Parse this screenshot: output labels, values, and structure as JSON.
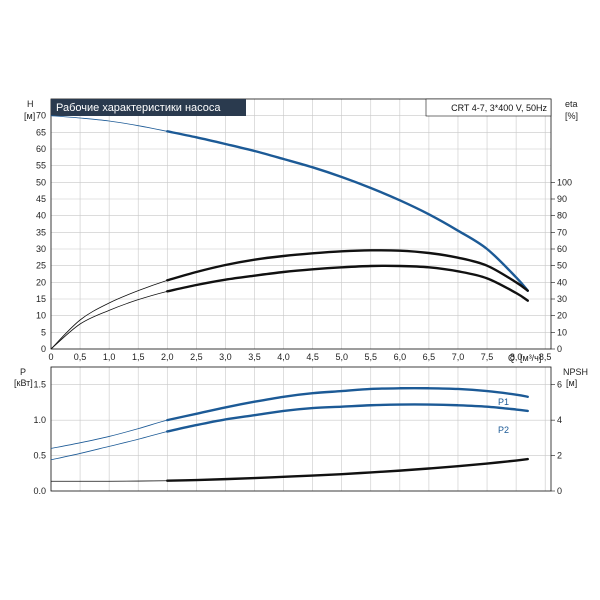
{
  "chart_data": [
    {
      "type": "line",
      "title": "Рабочие характеристики насоса",
      "subtitle": "CRT 4-7, 3*400 V, 50Hz",
      "ylabel": "H",
      "yunit": "[м]",
      "y2label": "eta",
      "y2unit": "[%]",
      "xlabel": "Q",
      "xunit": "[м³/ч]",
      "xlim": [
        0,
        8.6
      ],
      "ylim": [
        0,
        75
      ],
      "y2lim": [
        0,
        150
      ],
      "grid": true,
      "x_ticks": [
        "0",
        "0,5",
        "1,0",
        "1,5",
        "2,0",
        "2,5",
        "3,0",
        "3,5",
        "4,0",
        "4,5",
        "5,0",
        "5,5",
        "6,0",
        "6,5",
        "7,0",
        "7,5",
        "8,0",
        "8,5"
      ],
      "y_ticks": [
        "0",
        "5",
        "10",
        "15",
        "20",
        "25",
        "30",
        "35",
        "40",
        "45",
        "50",
        "55",
        "60",
        "65",
        "70"
      ],
      "y2_ticks": [
        "0",
        "10",
        "20",
        "30",
        "40",
        "50",
        "60",
        "70",
        "80",
        "90",
        "100"
      ],
      "series": [
        {
          "axis": "left",
          "color": "#1c5a96",
          "x": [
            0,
            0.5,
            1.0,
            1.5,
            2.0,
            2.5,
            3.0,
            3.5,
            4.0,
            4.5,
            5.0,
            5.5,
            6.0,
            6.5,
            7.0,
            7.5,
            8.0,
            8.2
          ],
          "values": [
            70.0,
            69.3,
            68.4,
            67.0,
            65.3,
            63.5,
            61.5,
            59.4,
            57.0,
            54.5,
            51.6,
            48.3,
            44.6,
            40.4,
            35.5,
            30.0,
            21.5,
            17.5
          ]
        },
        {
          "axis": "left",
          "color": "#111111",
          "x": [
            0,
            0.5,
            1.0,
            1.5,
            2.0,
            2.5,
            3.0,
            3.5,
            4.0,
            4.5,
            5.0,
            5.5,
            6.0,
            6.5,
            7.0,
            7.5,
            8.0,
            8.2
          ],
          "values": [
            0,
            8.7,
            13.8,
            17.5,
            20.6,
            23.1,
            25.2,
            26.8,
            27.9,
            28.7,
            29.3,
            29.6,
            29.5,
            28.8,
            27.4,
            25.0,
            20.0,
            17.5
          ]
        },
        {
          "axis": "left",
          "color": "#111111",
          "x": [
            0,
            0.5,
            1.0,
            1.5,
            2.0,
            2.5,
            3.0,
            3.5,
            4.0,
            4.5,
            5.0,
            5.5,
            6.0,
            6.5,
            7.0,
            7.5,
            8.0,
            8.2
          ],
          "values": [
            0,
            7.5,
            11.6,
            14.8,
            17.3,
            19.2,
            20.8,
            22.0,
            23.1,
            23.9,
            24.5,
            24.9,
            24.9,
            24.5,
            23.3,
            21.2,
            16.8,
            14.5
          ]
        }
      ]
    },
    {
      "type": "line",
      "ylabel": "P",
      "yunit": "[кВт]",
      "y2label": "NPSH",
      "y2unit": "[м]",
      "xlim": [
        0,
        8.6
      ],
      "ylim": [
        0,
        1.75
      ],
      "y2lim": [
        0,
        7
      ],
      "grid": true,
      "y_ticks": [
        "0.0",
        "0.5",
        "1.0",
        "1.5"
      ],
      "y2_ticks": [
        "0",
        "2",
        "4",
        "6"
      ],
      "series": [
        {
          "name": "P1",
          "axis": "left",
          "color": "#1c5a96",
          "x": [
            0,
            0.5,
            1.0,
            1.5,
            2.0,
            2.5,
            3.0,
            3.5,
            4.0,
            4.5,
            5.0,
            5.5,
            6.0,
            6.5,
            7.0,
            7.5,
            8.0,
            8.2
          ],
          "values": [
            0.6,
            0.68,
            0.77,
            0.88,
            1.0,
            1.09,
            1.18,
            1.26,
            1.33,
            1.38,
            1.41,
            1.44,
            1.45,
            1.45,
            1.44,
            1.41,
            1.36,
            1.33
          ]
        },
        {
          "name": "P2",
          "axis": "left",
          "color": "#1c5a96",
          "x": [
            0,
            0.5,
            1.0,
            1.5,
            2.0,
            2.5,
            3.0,
            3.5,
            4.0,
            4.5,
            5.0,
            5.5,
            6.0,
            6.5,
            7.0,
            7.5,
            8.0,
            8.2
          ],
          "values": [
            0.44,
            0.53,
            0.63,
            0.73,
            0.84,
            0.93,
            1.01,
            1.07,
            1.13,
            1.17,
            1.19,
            1.21,
            1.22,
            1.22,
            1.21,
            1.19,
            1.15,
            1.13
          ]
        },
        {
          "axis": "right",
          "color": "#111111",
          "x": [
            0,
            0.5,
            1.0,
            1.5,
            2.0,
            2.5,
            3.0,
            3.5,
            4.0,
            4.5,
            5.0,
            5.5,
            6.0,
            6.5,
            7.0,
            7.5,
            8.0,
            8.2
          ],
          "values": [
            0.55,
            0.55,
            0.55,
            0.56,
            0.58,
            0.62,
            0.67,
            0.73,
            0.8,
            0.87,
            0.95,
            1.05,
            1.15,
            1.27,
            1.4,
            1.55,
            1.72,
            1.8
          ]
        }
      ]
    }
  ]
}
